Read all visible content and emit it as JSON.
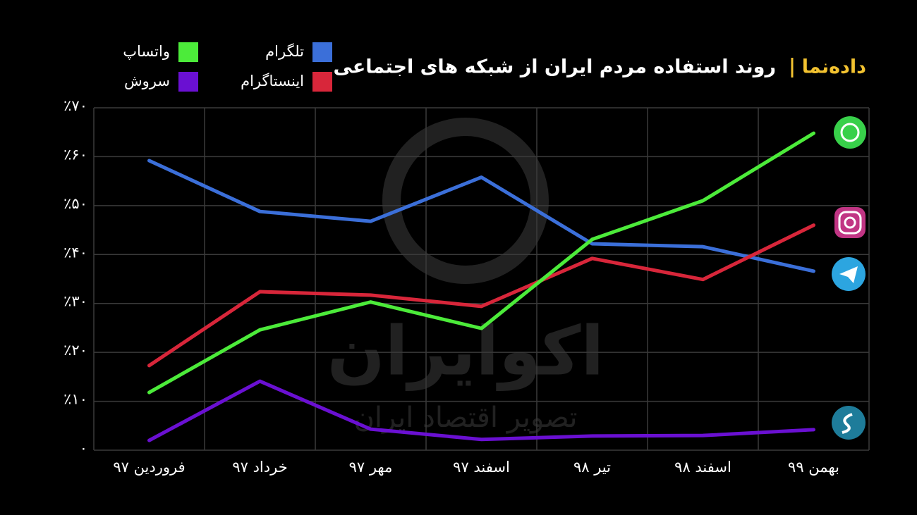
{
  "chart_data": {
    "type": "line",
    "brand": "داده‌نما",
    "title": "روند استفاده مردم ایران از شبکه های اجتماعی",
    "watermark": {
      "title": "اکوایران",
      "subtitle": "تصویر اقتصاد ایران"
    },
    "categories": [
      "فروردین ۹۷",
      "خرداد ۹۷",
      "مهر ۹۷",
      "اسفند ۹۷",
      "تیر ۹۸",
      "اسفند ۹۸",
      "بهمن ۹۹"
    ],
    "series": [
      {
        "name": "تلگرام",
        "color": "#3b6fd9",
        "values": [
          59.2,
          48.8,
          46.8,
          55.8,
          42.2,
          41.6,
          36.6
        ]
      },
      {
        "name": "اینستاگرام",
        "color": "#d8263a",
        "values": [
          17.3,
          32.4,
          31.7,
          29.4,
          39.2,
          34.9,
          46.0
        ]
      },
      {
        "name": "واتساپ",
        "color": "#4ceb3a",
        "values": [
          11.8,
          24.6,
          30.3,
          24.9,
          43.1,
          51.0,
          64.8
        ]
      },
      {
        "name": "سروش",
        "color": "#6a10d2",
        "values": [
          2.0,
          14.1,
          4.3,
          2.2,
          2.9,
          3.0,
          4.2
        ]
      }
    ],
    "ylim": [
      0,
      70
    ],
    "yticks": [
      {
        "value": 0,
        "label": "۰"
      },
      {
        "value": 10,
        "label": "٪۱۰"
      },
      {
        "value": 20,
        "label": "٪۲۰"
      },
      {
        "value": 30,
        "label": "٪۳۰"
      },
      {
        "value": 40,
        "label": "٪۴۰"
      },
      {
        "value": 50,
        "label": "٪۵۰"
      },
      {
        "value": 60,
        "label": "٪۶۰"
      },
      {
        "value": 70,
        "label": "٪۷۰"
      }
    ],
    "grid": true
  }
}
